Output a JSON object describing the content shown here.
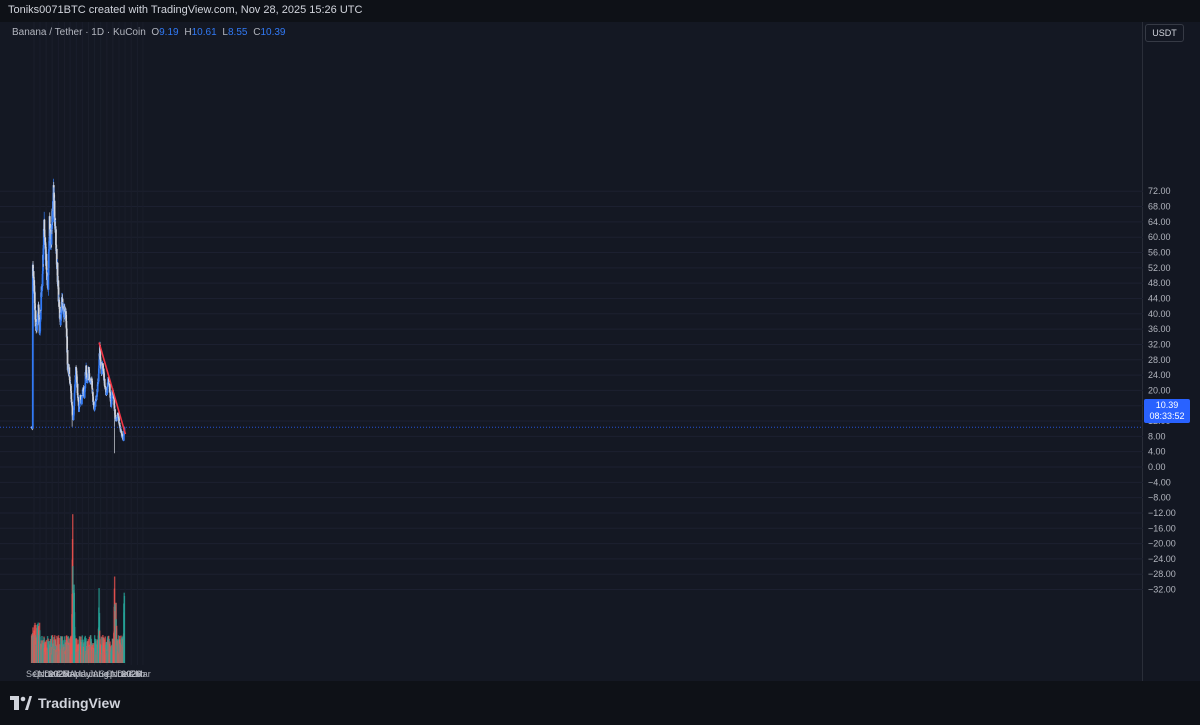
{
  "header": {
    "attribution": "Toniks0071BTC created with TradingView.com, Nov 28, 2025 15:26 UTC"
  },
  "legend": {
    "symbol": "Banana / Tether · 1D · KuCoin",
    "open_label": "O",
    "open": "9.19",
    "high_label": "H",
    "high": "10.61",
    "low_label": "L",
    "low": "8.55",
    "close_label": "C",
    "close": "10.39"
  },
  "price_axis": {
    "currency": "USDT"
  },
  "last_price": {
    "value": "10.39",
    "countdown": "08:33:52"
  },
  "footer": {
    "brand": "TradingView"
  },
  "colors": {
    "up": "#3179f5",
    "down": "#d1d4dc",
    "trendline": "#f23645",
    "vol_up": "#26a69a",
    "vol_down": "#ef5350",
    "background": "#131722"
  },
  "chart_data": {
    "type": "candlestick",
    "symbol": "Banana / Tether",
    "interval": "1D",
    "exchange": "KuCoin",
    "y_ticks": [
      72,
      68,
      64,
      60,
      56,
      52,
      48,
      44,
      40,
      36,
      32,
      28,
      24,
      20,
      16,
      12,
      8,
      4,
      0,
      -4,
      -8,
      -12,
      -16,
      -20,
      -24,
      -28,
      -32
    ],
    "y_tick_labels": [
      "72.00",
      "68.00",
      "64.00",
      "60.00",
      "56.00",
      "52.00",
      "48.00",
      "44.00",
      "40.00",
      "36.00",
      "32.00",
      "28.00",
      "24.00",
      "20.00",
      "16.00",
      "12.00",
      "8.00",
      "4.00",
      "0.00",
      "−4.00",
      "−8.00",
      "−12.00",
      "−16.00",
      "−20.00",
      "−24.00",
      "−28.00",
      "−32.00"
    ],
    "x_ticks": [
      "Sep",
      "Oct",
      "Nov",
      "Dec",
      "2025",
      "Feb",
      "Mar",
      "Apr",
      "May",
      "Jun",
      "Jul",
      "Aug",
      "Sep",
      "Oct",
      "Nov",
      "Dec",
      "2026",
      "Feb",
      "Mar"
    ],
    "price_series": [
      [
        "2024-08-26",
        52
      ],
      [
        "2024-09-02",
        46
      ],
      [
        "2024-09-09",
        38
      ],
      [
        "2024-09-16",
        37
      ],
      [
        "2024-09-23",
        41
      ],
      [
        "2024-09-30",
        35
      ],
      [
        "2024-10-07",
        44
      ],
      [
        "2024-10-14",
        50
      ],
      [
        "2024-10-21",
        64
      ],
      [
        "2024-10-28",
        58
      ],
      [
        "2024-11-04",
        50
      ],
      [
        "2024-11-11",
        48
      ],
      [
        "2024-11-18",
        64
      ],
      [
        "2024-11-25",
        58
      ],
      [
        "2024-12-02",
        66
      ],
      [
        "2024-12-09",
        72
      ],
      [
        "2024-12-16",
        62
      ],
      [
        "2024-12-23",
        56
      ],
      [
        "2024-12-30",
        48
      ],
      [
        "2025-01-06",
        41
      ],
      [
        "2025-01-13",
        38
      ],
      [
        "2025-01-20",
        44
      ],
      [
        "2025-01-27",
        40
      ],
      [
        "2025-02-03",
        42
      ],
      [
        "2025-02-10",
        38
      ],
      [
        "2025-02-17",
        26
      ],
      [
        "2025-02-24",
        25
      ],
      [
        "2025-03-03",
        21
      ],
      [
        "2025-03-10",
        16
      ],
      [
        "2025-03-17",
        12
      ],
      [
        "2025-03-24",
        20
      ],
      [
        "2025-03-31",
        26
      ],
      [
        "2025-04-07",
        20
      ],
      [
        "2025-04-14",
        15
      ],
      [
        "2025-04-21",
        18
      ],
      [
        "2025-04-28",
        17
      ],
      [
        "2025-05-05",
        21
      ],
      [
        "2025-05-12",
        18
      ],
      [
        "2025-05-19",
        26
      ],
      [
        "2025-05-26",
        22
      ],
      [
        "2025-06-02",
        25
      ],
      [
        "2025-06-09",
        22
      ],
      [
        "2025-06-16",
        23
      ],
      [
        "2025-06-23",
        18
      ],
      [
        "2025-06-30",
        15
      ],
      [
        "2025-07-07",
        17
      ],
      [
        "2025-07-14",
        19
      ],
      [
        "2025-07-21",
        23
      ],
      [
        "2025-07-28",
        31
      ],
      [
        "2025-08-04",
        25
      ],
      [
        "2025-08-11",
        27
      ],
      [
        "2025-08-18",
        23
      ],
      [
        "2025-08-25",
        20
      ],
      [
        "2025-09-01",
        19
      ],
      [
        "2025-09-08",
        23
      ],
      [
        "2025-09-15",
        21
      ],
      [
        "2025-09-22",
        16
      ],
      [
        "2025-09-29",
        20
      ],
      [
        "2025-10-06",
        18
      ],
      [
        "2025-10-13",
        13
      ],
      [
        "2025-10-20",
        12
      ],
      [
        "2025-10-27",
        14
      ],
      [
        "2025-11-03",
        11
      ],
      [
        "2025-11-10",
        9.5
      ],
      [
        "2025-11-17",
        8
      ],
      [
        "2025-11-24",
        7.5
      ],
      [
        "2025-11-28",
        10.39
      ]
    ],
    "ohlc_last": {
      "open": 9.19,
      "high": 10.61,
      "low": 8.55,
      "close": 10.39
    },
    "trendline": {
      "start": [
        "2025-07-24",
        32.5
      ],
      "end": [
        "2025-12-03",
        8.6
      ]
    },
    "volume_note": "volume bars in lower pane, largest spike around mid-March 2025",
    "volume_spikes": [
      [
        "2025-03-14",
        1.0
      ],
      [
        "2025-03-21",
        0.72
      ],
      [
        "2025-07-24",
        0.5
      ],
      [
        "2025-10-10",
        0.6
      ],
      [
        "2025-10-17",
        0.52
      ],
      [
        "2025-11-27",
        0.55
      ]
    ]
  }
}
